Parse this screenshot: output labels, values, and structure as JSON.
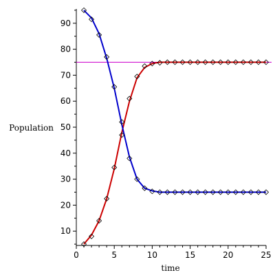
{
  "chart_data": {
    "type": "line",
    "xlabel": "time",
    "ylabel": "Population",
    "xlim": [
      0,
      25
    ],
    "ylim": [
      4.5,
      95.5
    ],
    "xticks": [
      0,
      5,
      10,
      15,
      20,
      25
    ],
    "yticks": [
      10,
      20,
      30,
      40,
      50,
      60,
      70,
      80,
      90
    ],
    "grid": false,
    "legend": "none",
    "reference_line": {
      "y": 75,
      "color": "#cc00cc"
    },
    "series": [
      {
        "color": "#cc0000",
        "style": "line",
        "x": [
          1,
          2,
          3,
          4,
          5,
          6,
          7,
          8,
          9,
          10,
          11,
          12,
          13,
          14,
          15,
          16,
          17,
          18,
          19,
          20,
          21,
          22,
          23,
          24,
          25
        ],
        "values": [
          5,
          8.5,
          14,
          22.5,
          34,
          48,
          60,
          69,
          73,
          74.5,
          75,
          75,
          75,
          75,
          75,
          75,
          75,
          75,
          75,
          75,
          75,
          75,
          75,
          75,
          75
        ]
      },
      {
        "color": "#0000cc",
        "style": "line",
        "x": [
          1,
          2,
          3,
          4,
          5,
          6,
          7,
          8,
          9,
          10,
          11,
          12,
          13,
          14,
          15,
          16,
          17,
          18,
          19,
          20,
          21,
          22,
          23,
          24,
          25
        ],
        "values": [
          95,
          92,
          86,
          76.5,
          65,
          51,
          38.5,
          30,
          26.5,
          25.5,
          25,
          25,
          25,
          25,
          25,
          25,
          25,
          25,
          25,
          25,
          25,
          25,
          25,
          25,
          25
        ]
      },
      {
        "color": "#000000",
        "style": "diamond-markers",
        "x": [
          1,
          2,
          3,
          4,
          5,
          6,
          7,
          8,
          9,
          10,
          11,
          12,
          13,
          14,
          15,
          16,
          17,
          18,
          19,
          20,
          21,
          22,
          23,
          24,
          25
        ],
        "values": [
          5,
          8,
          14,
          22.5,
          34.5,
          47,
          61,
          69.5,
          73.5,
          74.5,
          74.8,
          75,
          75,
          75,
          75,
          75,
          75,
          75,
          75,
          75,
          75,
          75,
          75,
          75,
          75
        ]
      },
      {
        "color": "#000000",
        "style": "diamond-markers",
        "x": [
          1,
          2,
          3,
          4,
          5,
          6,
          7,
          8,
          9,
          10,
          11,
          12,
          13,
          14,
          15,
          16,
          17,
          18,
          19,
          20,
          21,
          22,
          23,
          24,
          25
        ],
        "values": [
          95,
          91.5,
          85.5,
          77,
          65.5,
          52,
          38,
          30,
          26.5,
          25.3,
          25,
          25,
          25,
          25,
          25,
          25,
          25,
          25,
          25,
          25,
          25,
          25,
          25,
          25,
          25
        ]
      }
    ]
  }
}
